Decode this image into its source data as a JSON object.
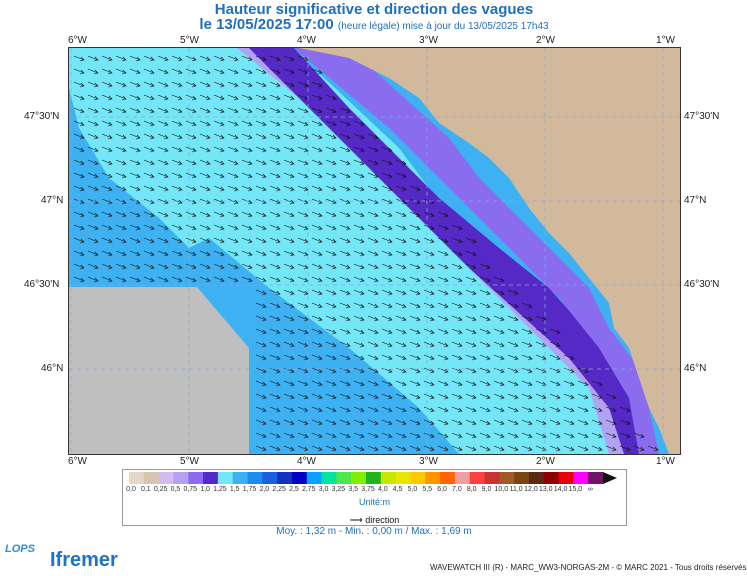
{
  "header": {
    "title": "Hauteur significative et direction des vagues",
    "date": "le 13/05/2025 17:00",
    "subtitle": "(heure légale) mise à jour du 13/05/2025 17h43"
  },
  "map": {
    "lon_labels": [
      "6°W",
      "5°W",
      "4°W",
      "3°W",
      "2°W",
      "1°W"
    ],
    "lat_labels": [
      "47°30'N",
      "47°N",
      "46°30'N",
      "46°N"
    ],
    "colors": {
      "land": "#d2b99b",
      "nodata": "#bfbfbf",
      "band_1": "#3db1f2",
      "band_2": "#73e6f7",
      "band_3": "#b3a1f3",
      "band_4": "#8a6cee",
      "band_5": "#5429c6",
      "arrow": "#111111",
      "grid": "#8aa9d6"
    }
  },
  "legend": {
    "labels": [
      "0,0",
      "0,1",
      "0,25",
      "0,5",
      "0,75",
      "1,0",
      "1,25",
      "1,5",
      "1,75",
      "2,0",
      "2,25",
      "2,5",
      "2,75",
      "3,0",
      "3,25",
      "3,5",
      "3,75",
      "4,0",
      "4,5",
      "5,0",
      "5,5",
      "6,0",
      "7,0",
      "8,0",
      "9,0",
      "10,0",
      "11,0",
      "12,0",
      "13,0",
      "14,0",
      "15,0",
      "∞"
    ],
    "colors": [
      "#e5d6c7",
      "#d9c4ae",
      "#d0bcee",
      "#b3a1f3",
      "#8a6cee",
      "#5429c6",
      "#73e6f7",
      "#3db1f2",
      "#1a8ef0",
      "#1a5fe0",
      "#1432c0",
      "#0000c8",
      "#0aa0ff",
      "#00e6a0",
      "#4de64d",
      "#80f000",
      "#1db41d",
      "#c8e600",
      "#e6e600",
      "#ffc800",
      "#ff9600",
      "#ff6400",
      "#f0a0a0",
      "#ff4040",
      "#c83232",
      "#a05a28",
      "#784614",
      "#5a2814",
      "#8c0000",
      "#e60000",
      "#ff00ff",
      "#6e1464"
    ],
    "unit": "Unité:m",
    "direction_label": "direction"
  },
  "stats": "Moy. : 1,32 m   -   Min. : 0,00 m / Max. : 1,69 m",
  "footer": {
    "credit": "WAVEWATCH III (R) - MARC_WW3-NORGAS-2M - © MARC 2021 - Tous droits réservés",
    "lops": "LOPS",
    "ifremer": "Ifremer"
  }
}
